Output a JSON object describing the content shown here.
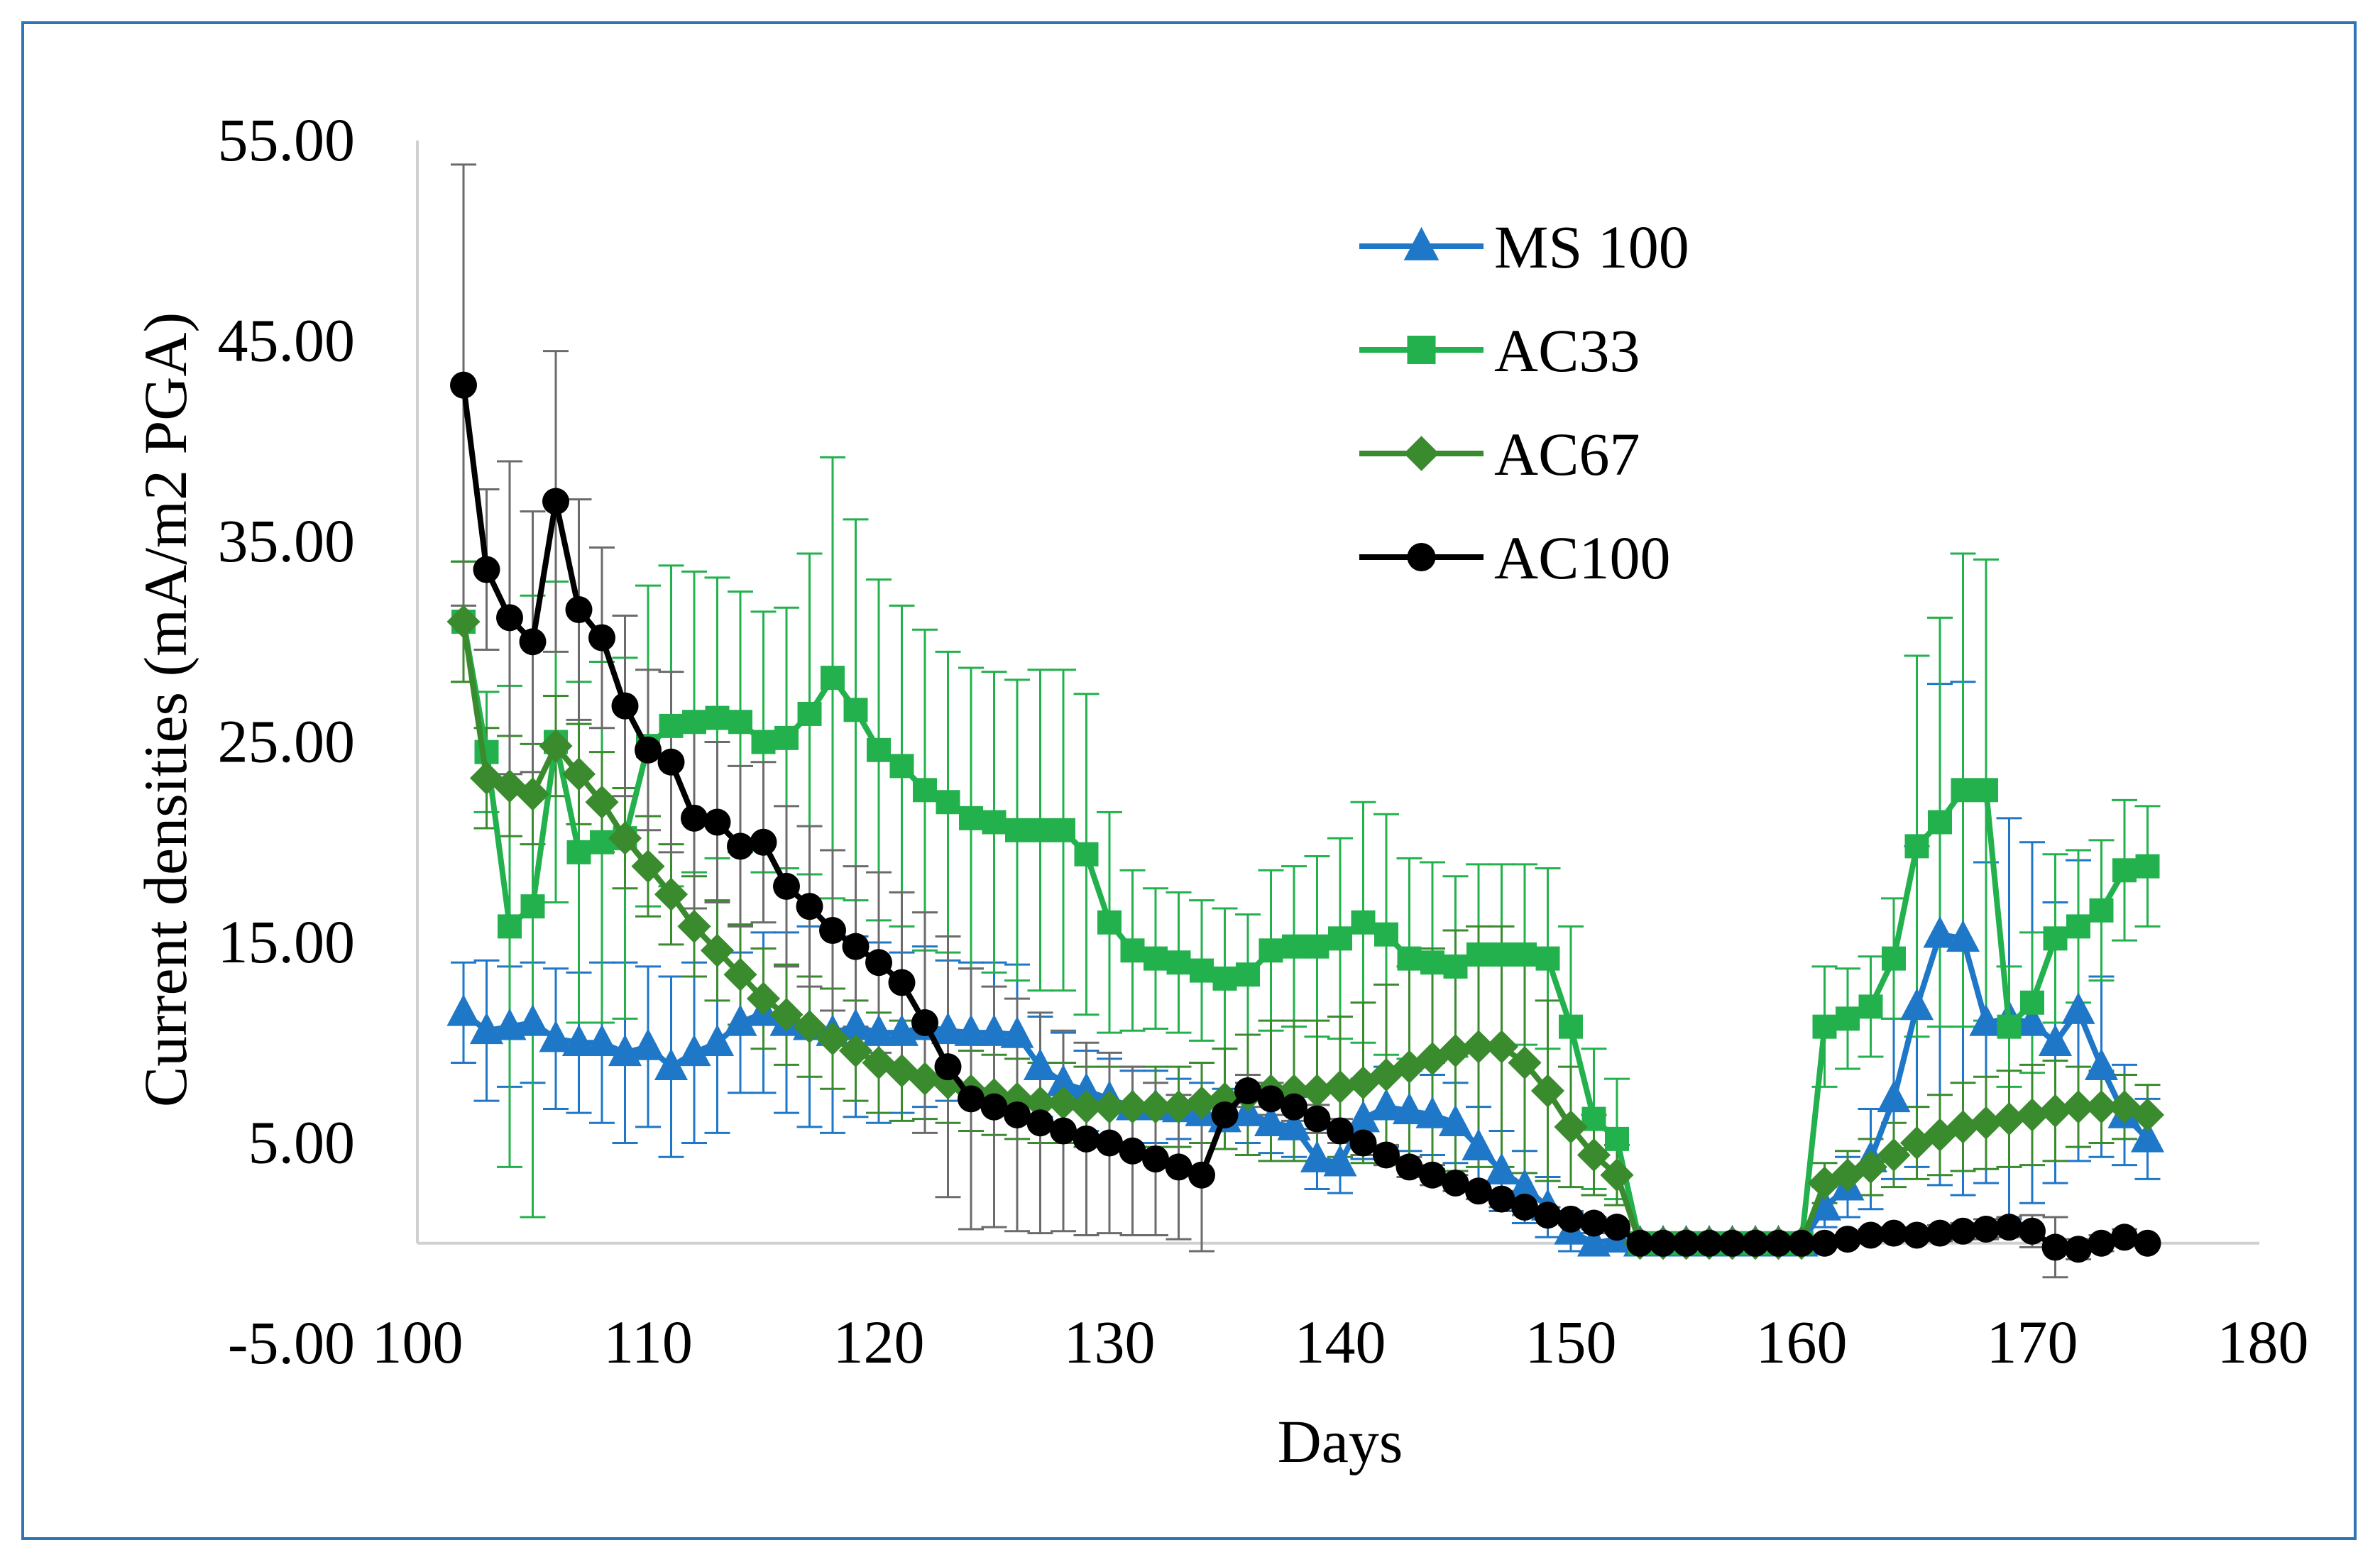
{
  "chart_data": {
    "type": "line",
    "title": "",
    "xlabel": "Days",
    "ylabel": "Current densities (mA/m2 PGA)",
    "xlim": [
      100,
      180
    ],
    "ylim": [
      -5,
      55
    ],
    "x_ticks": [
      100,
      110,
      120,
      130,
      140,
      150,
      160,
      170,
      180
    ],
    "x_tick_labels": [
      "100",
      "110",
      "120",
      "130",
      "140",
      "150",
      "160",
      "170",
      "180"
    ],
    "y_ticks": [
      55,
      45,
      35,
      25,
      15,
      5,
      -5
    ],
    "y_tick_labels": [
      "55.00",
      "45.00",
      "35.00",
      "25.00",
      "15.00",
      "5.00",
      "-5.00"
    ],
    "legend_position": "top-right",
    "series": [
      {
        "name": "MS 100",
        "color": "#1f77c8",
        "marker": "triangle",
        "x": [
          102,
          103,
          104,
          105,
          106,
          107,
          108,
          109,
          110,
          111,
          112,
          113,
          114,
          115,
          116,
          117,
          118,
          119,
          120,
          121,
          122,
          123,
          124,
          125,
          126,
          127,
          128,
          129,
          130,
          131,
          132,
          133,
          134,
          135,
          136,
          137,
          138,
          139,
          140,
          141,
          142,
          143,
          144,
          145,
          146,
          147,
          148,
          149,
          150,
          151,
          152,
          153,
          154,
          155,
          156,
          157,
          158,
          159,
          160,
          161,
          162,
          163,
          164,
          165,
          166,
          167,
          168,
          169,
          170,
          171,
          172,
          173,
          174,
          175
        ],
        "y": [
          11.5,
          10.6,
          10.8,
          11.0,
          10.2,
          10.0,
          10.0,
          9.5,
          9.8,
          8.8,
          9.5,
          10.0,
          11.0,
          11.5,
          11.0,
          10.8,
          10.5,
          10.8,
          10.5,
          10.5,
          10.8,
          10.6,
          10.5,
          10.5,
          10.4,
          8.8,
          8.0,
          7.6,
          7.2,
          6.8,
          6.8,
          6.7,
          6.5,
          6.2,
          6.5,
          6.0,
          5.8,
          4.2,
          4.0,
          6.2,
          6.8,
          6.6,
          6.4,
          6.0,
          4.8,
          3.6,
          2.8,
          1.8,
          0.6,
          0.0,
          0.2,
          0.0,
          0.0,
          0.0,
          0.0,
          0.0,
          0.0,
          0.0,
          0.0,
          1.8,
          2.8,
          4.2,
          7.2,
          11.8,
          15.4,
          15.2,
          11.0,
          11.2,
          11.0,
          10.0,
          11.6,
          8.8,
          6.4,
          5.2
        ],
        "error": [
          2.5,
          3.5,
          3.0,
          3.0,
          3.5,
          3.5,
          4.0,
          4.5,
          4.0,
          4.5,
          4.5,
          4.5,
          3.5,
          4.0,
          4.5,
          5.0,
          5.0,
          4.5,
          4.5,
          4.0,
          4.0,
          3.5,
          3.5,
          3.5,
          3.5,
          2.5,
          2.5,
          2.0,
          2.0,
          1.8,
          1.8,
          1.5,
          1.5,
          1.5,
          1.5,
          1.5,
          1.5,
          1.5,
          1.5,
          2.0,
          2.0,
          2.0,
          2.0,
          2.0,
          2.0,
          2.0,
          1.8,
          1.5,
          1.0,
          0.5,
          0.5,
          0,
          0,
          0,
          0,
          0,
          0,
          0,
          0,
          1.0,
          1.5,
          2.5,
          4.0,
          8.0,
          12.5,
          12.8,
          8.0,
          10.0,
          9.0,
          7.0,
          7.5,
          4.5,
          2.5,
          2.0
        ]
      },
      {
        "name": "AC33",
        "color": "#22b14c",
        "marker": "square",
        "x": [
          102,
          103,
          104,
          105,
          106,
          107,
          108,
          109,
          110,
          111,
          112,
          113,
          114,
          115,
          116,
          117,
          118,
          119,
          120,
          121,
          122,
          123,
          124,
          125,
          126,
          127,
          128,
          129,
          130,
          131,
          132,
          133,
          134,
          135,
          136,
          137,
          138,
          139,
          140,
          141,
          142,
          143,
          144,
          145,
          146,
          147,
          148,
          149,
          150,
          151,
          152,
          153,
          154,
          155,
          156,
          157,
          158,
          159,
          160,
          161,
          162,
          163,
          164,
          165,
          166,
          167,
          168,
          169,
          170,
          171,
          172,
          173,
          174,
          175
        ],
        "y": [
          31.0,
          24.5,
          15.8,
          16.8,
          25.0,
          19.5,
          20.0,
          20.2,
          24.8,
          25.8,
          26.0,
          26.2,
          26.0,
          25.0,
          25.2,
          26.4,
          28.2,
          26.6,
          24.6,
          23.8,
          22.6,
          22.0,
          21.2,
          21.0,
          20.6,
          20.6,
          20.6,
          19.4,
          16.0,
          14.6,
          14.2,
          14.0,
          13.6,
          13.2,
          13.4,
          14.6,
          14.8,
          14.8,
          15.2,
          16.0,
          15.4,
          14.2,
          14.0,
          13.8,
          14.4,
          14.4,
          14.4,
          14.2,
          10.8,
          6.2,
          5.2,
          0.0,
          0.0,
          0.0,
          0.0,
          0.0,
          0.0,
          0.0,
          0.0,
          10.8,
          11.2,
          11.8,
          14.2,
          19.8,
          21.0,
          22.6,
          22.6,
          10.8,
          12.0,
          15.2,
          15.8,
          16.6,
          18.6,
          18.8
        ],
        "error": [
          3.0,
          3.0,
          12.0,
          15.5,
          8.0,
          8.5,
          9.0,
          9.0,
          8.0,
          8.0,
          7.5,
          7.0,
          6.5,
          6.5,
          6.5,
          8.0,
          11.0,
          9.5,
          8.5,
          8.0,
          8.0,
          7.5,
          7.5,
          7.5,
          7.5,
          8.0,
          8.0,
          8.0,
          5.5,
          4.0,
          3.5,
          3.5,
          3.5,
          3.5,
          3.0,
          4.0,
          4.0,
          4.5,
          5.0,
          6.0,
          6.0,
          5.0,
          5.0,
          4.5,
          4.5,
          4.5,
          4.5,
          4.5,
          5.0,
          3.5,
          3.0,
          0,
          0,
          0,
          0,
          0,
          0,
          0,
          0,
          3.0,
          2.5,
          2.5,
          3.0,
          9.5,
          10.2,
          11.8,
          11.5,
          3.0,
          3.5,
          4.2,
          3.8,
          3.5,
          3.5,
          3.0
        ]
      },
      {
        "name": "AC67",
        "color": "#3a8a2e",
        "marker": "diamond",
        "x": [
          102,
          103,
          104,
          105,
          106,
          107,
          108,
          109,
          110,
          111,
          112,
          113,
          114,
          115,
          116,
          117,
          118,
          119,
          120,
          121,
          122,
          123,
          124,
          125,
          126,
          127,
          128,
          129,
          130,
          131,
          132,
          133,
          134,
          135,
          136,
          137,
          138,
          139,
          140,
          141,
          142,
          143,
          144,
          145,
          146,
          147,
          148,
          149,
          150,
          151,
          152,
          153,
          154,
          155,
          156,
          157,
          158,
          159,
          160,
          161,
          162,
          163,
          164,
          165,
          166,
          167,
          168,
          169,
          170,
          171,
          172,
          173,
          174,
          175
        ],
        "y": [
          31.0,
          23.2,
          22.8,
          22.4,
          24.8,
          23.4,
          22.0,
          20.2,
          18.8,
          17.4,
          15.8,
          14.6,
          13.4,
          12.2,
          11.4,
          10.8,
          10.2,
          9.6,
          9.0,
          8.6,
          8.2,
          8.0,
          7.6,
          7.4,
          7.2,
          7.0,
          7.0,
          6.8,
          6.8,
          6.8,
          6.8,
          6.8,
          7.0,
          7.2,
          7.4,
          7.6,
          7.6,
          7.6,
          7.8,
          8.0,
          8.4,
          8.8,
          9.2,
          9.6,
          9.8,
          9.8,
          9.0,
          7.6,
          5.8,
          4.4,
          3.4,
          0.0,
          0.0,
          0.0,
          0.0,
          0.0,
          0.0,
          0.0,
          0.0,
          3.0,
          3.4,
          3.8,
          4.4,
          5.0,
          5.4,
          5.8,
          6.0,
          6.2,
          6.4,
          6.6,
          6.8,
          6.8,
          6.8,
          6.4
        ],
        "error": [
          3.0,
          2.5,
          2.5,
          2.5,
          2.5,
          2.5,
          2.5,
          2.5,
          2.5,
          2.5,
          2.5,
          2.5,
          2.5,
          2.5,
          2.5,
          2.5,
          2.5,
          2.5,
          2.5,
          2.5,
          2.0,
          2.0,
          2.0,
          2.0,
          2.0,
          2.0,
          2.0,
          2.0,
          2.0,
          2.0,
          2.0,
          2.0,
          2.0,
          2.5,
          3.0,
          3.5,
          3.5,
          3.5,
          3.5,
          4.0,
          4.5,
          5.0,
          5.5,
          6.0,
          6.0,
          6.0,
          5.5,
          4.5,
          3.0,
          2.0,
          1.5,
          0,
          0,
          0,
          0,
          0,
          0,
          0,
          0,
          1.0,
          1.2,
          1.4,
          1.6,
          1.8,
          2.0,
          2.2,
          2.3,
          2.4,
          2.5,
          2.5,
          2.0,
          1.8,
          1.6,
          1.5
        ]
      },
      {
        "name": "AC100",
        "color": "#000000",
        "marker": "circle",
        "x": [
          102,
          103,
          104,
          105,
          106,
          107,
          108,
          109,
          110,
          111,
          112,
          113,
          114,
          115,
          116,
          117,
          118,
          119,
          120,
          121,
          122,
          123,
          124,
          125,
          126,
          127,
          128,
          129,
          130,
          131,
          132,
          133,
          134,
          135,
          136,
          137,
          138,
          139,
          140,
          141,
          142,
          143,
          144,
          145,
          146,
          147,
          148,
          149,
          150,
          151,
          152,
          153,
          154,
          155,
          156,
          157,
          158,
          159,
          160,
          161,
          162,
          163,
          164,
          165,
          166,
          167,
          168,
          169,
          170,
          171,
          172,
          173,
          174,
          175
        ],
        "y": [
          42.8,
          33.6,
          31.2,
          30.0,
          37.0,
          31.6,
          30.2,
          26.8,
          24.6,
          24.0,
          21.2,
          21.0,
          19.8,
          20.0,
          17.8,
          16.8,
          15.6,
          14.8,
          14.0,
          13.0,
          11.0,
          8.8,
          7.2,
          6.8,
          6.4,
          6.0,
          5.6,
          5.2,
          5.0,
          4.6,
          4.2,
          3.8,
          3.4,
          6.4,
          7.6,
          7.2,
          6.8,
          6.2,
          5.6,
          5.0,
          4.4,
          3.8,
          3.4,
          3.0,
          2.6,
          2.2,
          1.8,
          1.4,
          1.2,
          1.0,
          0.8,
          0.0,
          0.0,
          0.0,
          0.0,
          0.0,
          0.0,
          0.0,
          0.0,
          0.0,
          0.2,
          0.4,
          0.5,
          0.4,
          0.5,
          0.6,
          0.7,
          0.8,
          0.6,
          -0.2,
          -0.3,
          0.0,
          0.3,
          0.0
        ],
        "error": [
          11.0,
          4.0,
          7.8,
          6.5,
          7.5,
          5.5,
          4.5,
          4.5,
          4.0,
          4.5,
          4.5,
          4.0,
          4.0,
          4.0,
          4.0,
          4.0,
          4.0,
          4.0,
          4.5,
          4.5,
          5.5,
          6.5,
          6.5,
          6.0,
          5.8,
          5.5,
          5.0,
          4.8,
          4.5,
          4.2,
          3.8,
          3.6,
          3.8,
          0.6,
          0.8,
          0.8,
          0.7,
          0.7,
          0.6,
          0.6,
          0.5,
          0.5,
          0.5,
          0.4,
          0.4,
          0.4,
          0.4,
          0.4,
          0.3,
          0.3,
          0.3,
          0,
          0,
          0,
          0,
          0,
          0,
          0,
          0,
          0.2,
          0.2,
          0.3,
          0.3,
          0.3,
          0.4,
          0.4,
          0.5,
          0.5,
          0.8,
          1.5,
          0.5,
          0.4,
          0.4,
          0.2
        ]
      }
    ]
  }
}
